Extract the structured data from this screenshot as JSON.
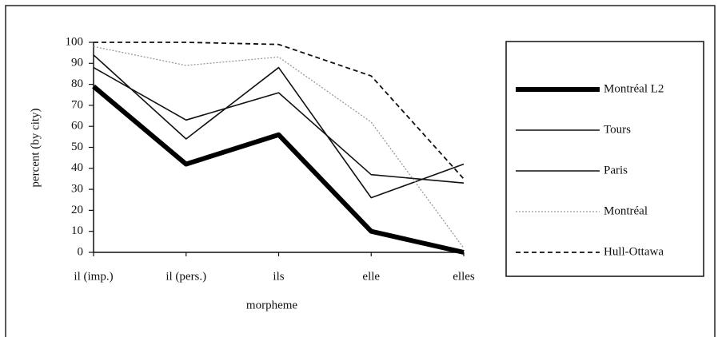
{
  "chart_data": {
    "type": "line",
    "xlabel": "morpheme",
    "ylabel": "percent (by city)",
    "categories": [
      "il (imp.)",
      "il (pers.)",
      "ils",
      "elle",
      "elles"
    ],
    "series": [
      {
        "name": "Montréal L2",
        "color": "#000000",
        "style": "thick",
        "values": [
          79,
          42,
          56,
          10,
          0
        ]
      },
      {
        "name": "Tours",
        "color": "#111111",
        "style": "solid",
        "values": [
          94,
          54,
          88,
          26,
          42
        ]
      },
      {
        "name": "Paris",
        "color": "#111111",
        "style": "solid",
        "values": [
          88,
          63,
          76,
          37,
          33
        ]
      },
      {
        "name": "Montréal",
        "color": "#999999",
        "style": "dotted",
        "values": [
          98,
          89,
          93,
          62,
          2
        ]
      },
      {
        "name": "Hull-Ottawa",
        "color": "#111111",
        "style": "dashed",
        "values": [
          100,
          100,
          99,
          84,
          35
        ]
      }
    ],
    "ylim": [
      0,
      100
    ],
    "yticks": [
      0,
      10,
      20,
      30,
      40,
      50,
      60,
      70,
      80,
      90,
      100
    ],
    "legend": "right"
  }
}
